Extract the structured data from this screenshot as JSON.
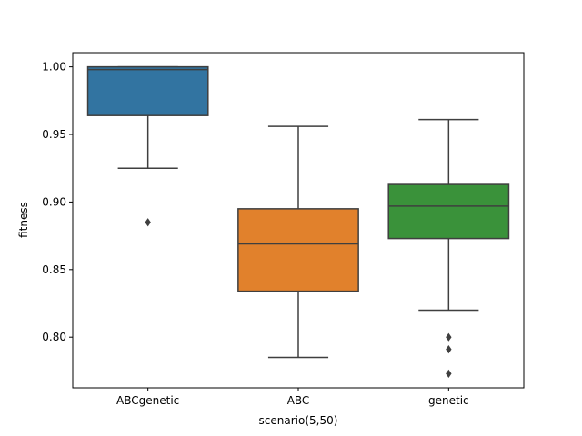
{
  "chart_data": {
    "type": "box",
    "xlabel": "scenario(5,50)",
    "ylabel": "fitness",
    "ylim": [
      0.7625,
      1.0105
    ],
    "yticks": [
      0.8,
      0.85,
      0.9,
      0.95,
      1.0
    ],
    "ytick_labels": [
      "0.80",
      "0.85",
      "0.90",
      "0.95",
      "1.00"
    ],
    "grid": false,
    "series": [
      {
        "category": "ABCgenetic",
        "color": "#3274a1",
        "whisker_low": 0.925,
        "q1": 0.964,
        "median": 0.998,
        "q3": 1.0,
        "whisker_high": 1.0,
        "outliers": [
          0.885
        ]
      },
      {
        "category": "ABC",
        "color": "#e1812c",
        "whisker_low": 0.785,
        "q1": 0.834,
        "median": 0.869,
        "q3": 0.895,
        "whisker_high": 0.956,
        "outliers": []
      },
      {
        "category": "genetic",
        "color": "#3a923a",
        "whisker_low": 0.82,
        "q1": 0.873,
        "median": 0.897,
        "q3": 0.913,
        "whisker_high": 0.961,
        "outliers": [
          0.8,
          0.791,
          0.773
        ]
      }
    ]
  }
}
